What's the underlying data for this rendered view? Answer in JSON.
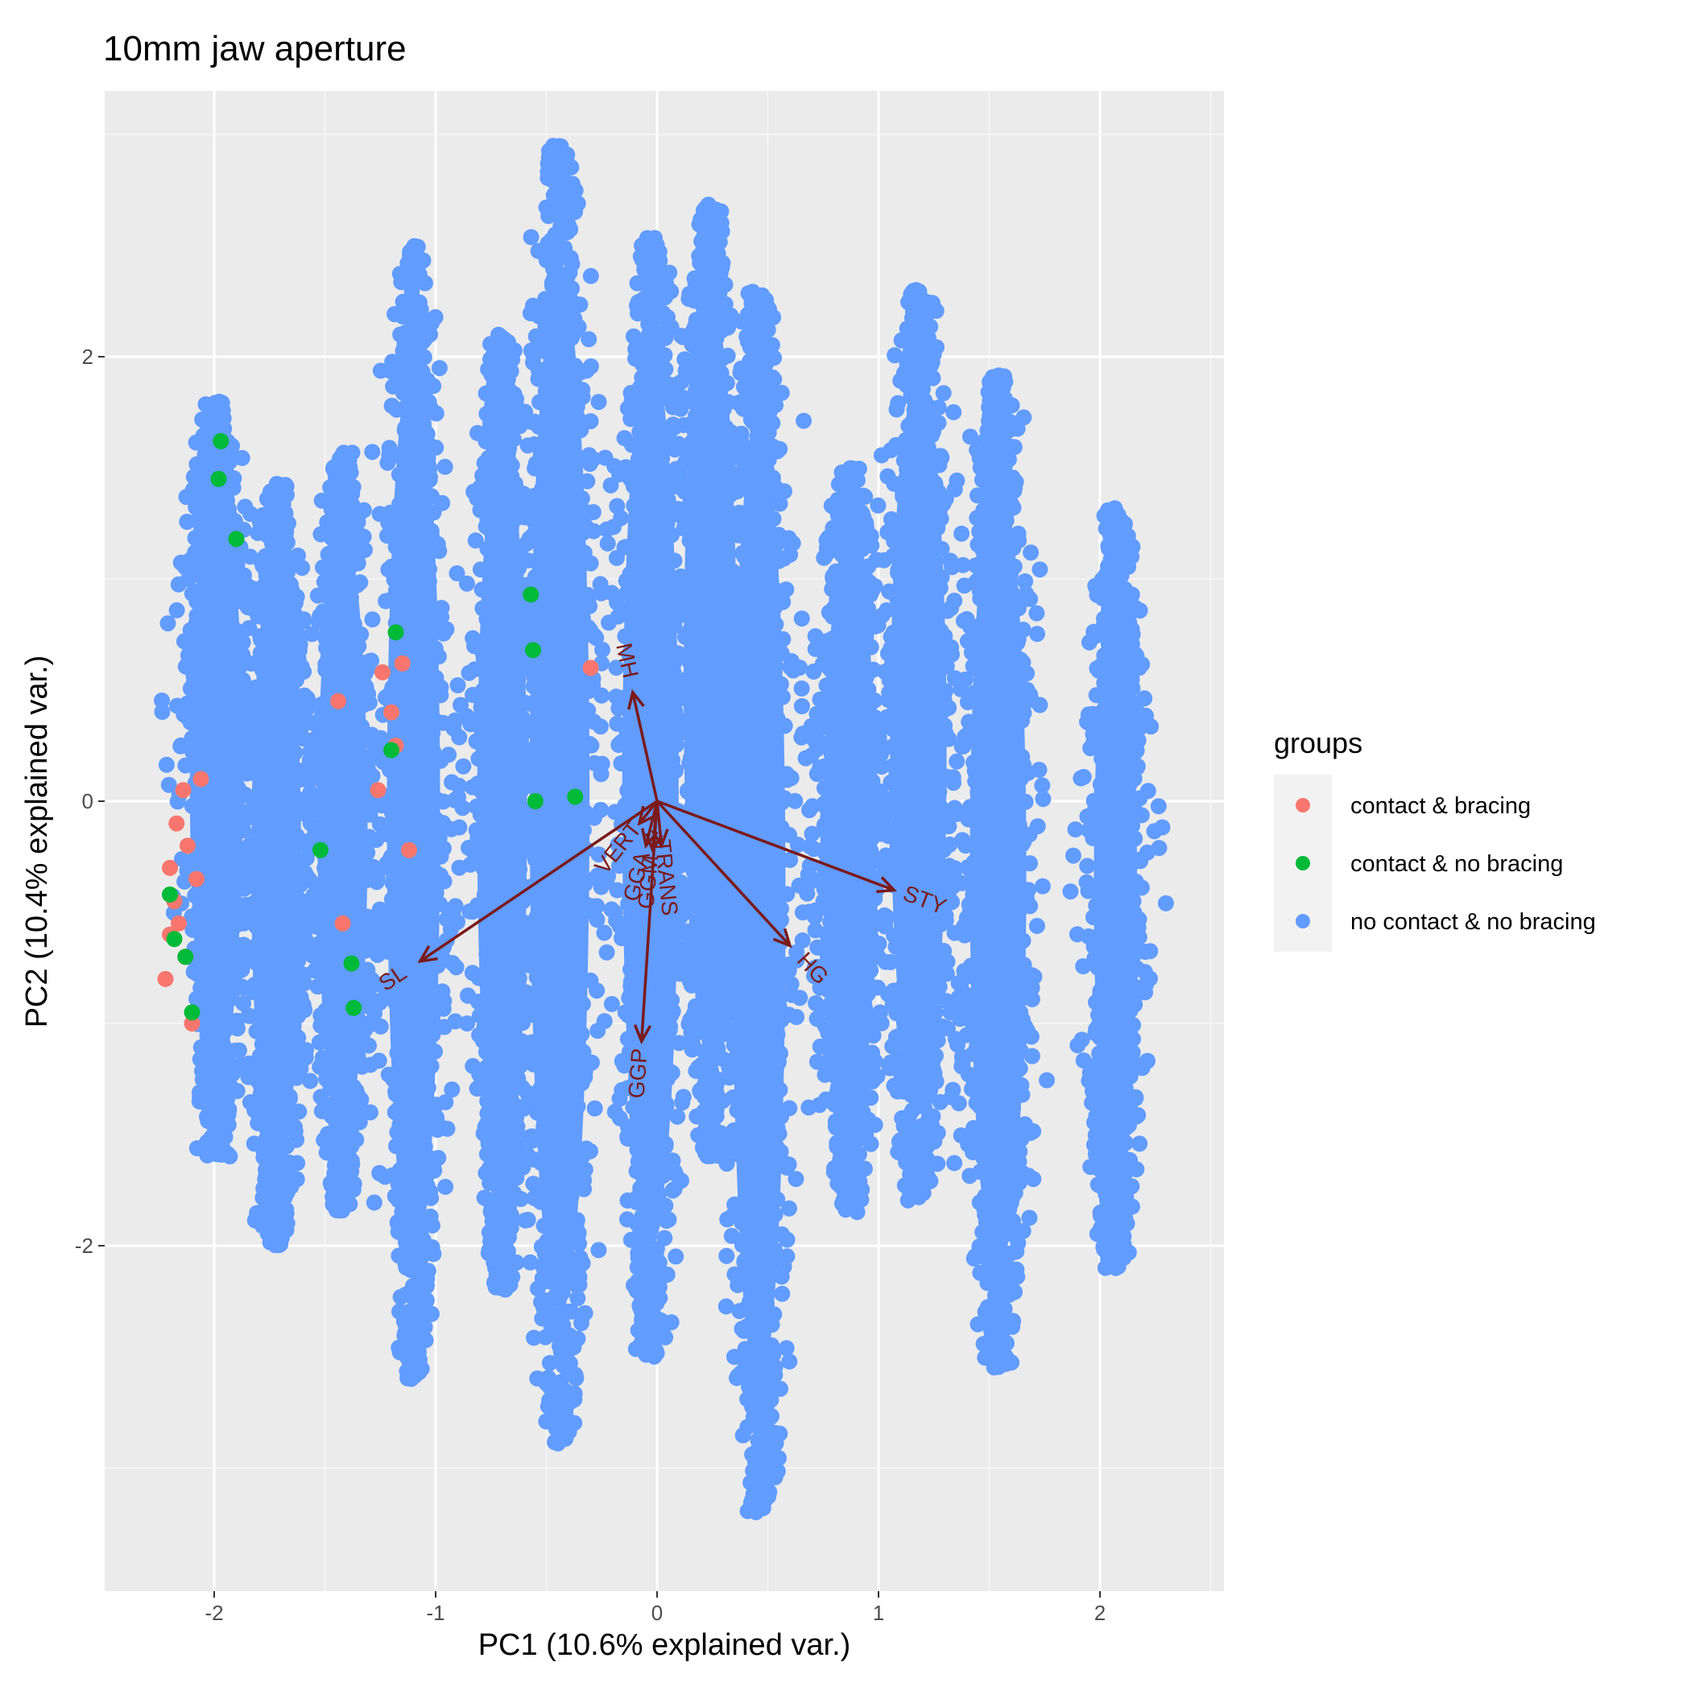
{
  "chart_data": {
    "type": "scatter",
    "title": "10mm jaw aperture",
    "xlabel": "PC1 (10.6% explained var.)",
    "ylabel": "PC2 (10.4% explained var.)",
    "xlim": [
      -2.5,
      2.5
    ],
    "ylim": [
      -3.5,
      3.2
    ],
    "x_ticks": [
      -2,
      -1,
      0,
      1,
      2
    ],
    "y_ticks": [
      -2,
      0,
      2
    ],
    "grid": true,
    "legend": {
      "title": "groups",
      "position": "right",
      "entries": [
        {
          "name": "contact & bracing",
          "color": "#F8766D"
        },
        {
          "name": "contact & no bracing",
          "color": "#00BA38"
        },
        {
          "name": "no contact & no bracing",
          "color": "#619CFF"
        }
      ]
    },
    "clusters_no_contact": [
      {
        "x_center": -1.99,
        "x_spread": 0.16,
        "y_min": -1.6,
        "y_max": 1.8
      },
      {
        "x_center": -1.72,
        "x_spread": 0.15,
        "y_min": -2.0,
        "y_max": 1.43
      },
      {
        "x_center": -1.42,
        "x_spread": 0.15,
        "y_min": -1.85,
        "y_max": 1.57
      },
      {
        "x_center": -1.1,
        "x_spread": 0.16,
        "y_min": -2.6,
        "y_max": 2.5
      },
      {
        "x_center": -0.7,
        "x_spread": 0.15,
        "y_min": -2.2,
        "y_max": 2.1
      },
      {
        "x_center": -0.44,
        "x_spread": 0.18,
        "y_min": -2.9,
        "y_max": 2.95
      },
      {
        "x_center": -0.03,
        "x_spread": 0.17,
        "y_min": -2.5,
        "y_max": 2.55
      },
      {
        "x_center": 0.24,
        "x_spread": 0.16,
        "y_min": -1.6,
        "y_max": 2.7
      },
      {
        "x_center": 0.46,
        "x_spread": 0.16,
        "y_min": -3.2,
        "y_max": 2.3
      },
      {
        "x_center": 0.87,
        "x_spread": 0.16,
        "y_min": -1.85,
        "y_max": 1.5
      },
      {
        "x_center": 1.18,
        "x_spread": 0.17,
        "y_min": -1.8,
        "y_max": 2.3
      },
      {
        "x_center": 1.54,
        "x_spread": 0.17,
        "y_min": -2.55,
        "y_max": 1.92
      },
      {
        "x_center": 2.07,
        "x_spread": 0.13,
        "y_min": -2.1,
        "y_max": 1.32
      }
    ],
    "points_contact_bracing": [
      [
        -2.22,
        -0.8
      ],
      [
        -2.2,
        -0.6
      ],
      [
        -2.18,
        -0.45
      ],
      [
        -2.2,
        -0.3
      ],
      [
        -2.17,
        -0.1
      ],
      [
        -2.14,
        0.05
      ],
      [
        -2.16,
        -0.55
      ],
      [
        -2.12,
        -0.2
      ],
      [
        -2.1,
        -1.0
      ],
      [
        -2.13,
        -0.7
      ],
      [
        -2.08,
        -0.35
      ],
      [
        -2.06,
        0.1
      ],
      [
        -1.44,
        0.45
      ],
      [
        -1.42,
        -0.55
      ],
      [
        -1.26,
        0.05
      ],
      [
        -1.24,
        0.58
      ],
      [
        -1.2,
        0.4
      ],
      [
        -1.18,
        0.25
      ],
      [
        -1.15,
        0.62
      ],
      [
        -1.12,
        -0.22
      ],
      [
        -0.3,
        0.6
      ]
    ],
    "points_contact_nobracing": [
      [
        -1.97,
        1.62
      ],
      [
        -1.98,
        1.45
      ],
      [
        -1.9,
        1.18
      ],
      [
        -2.2,
        -0.42
      ],
      [
        -2.18,
        -0.62
      ],
      [
        -2.13,
        -0.7
      ],
      [
        -2.1,
        -0.95
      ],
      [
        -1.52,
        -0.22
      ],
      [
        -1.38,
        -0.73
      ],
      [
        -1.37,
        -0.93
      ],
      [
        -1.2,
        0.23
      ],
      [
        -1.18,
        0.76
      ],
      [
        -0.57,
        0.93
      ],
      [
        -0.56,
        0.68
      ],
      [
        -0.55,
        0.0
      ],
      [
        -0.37,
        0.02
      ]
    ],
    "loadings": [
      {
        "name": "MH",
        "x": -0.11,
        "y": 0.49
      },
      {
        "name": "SL",
        "x": -1.07,
        "y": -0.72
      },
      {
        "name": "STY",
        "x": 1.07,
        "y": -0.4
      },
      {
        "name": "HG",
        "x": 0.6,
        "y": -0.65
      },
      {
        "name": "GGP",
        "x": -0.07,
        "y": -1.08
      },
      {
        "name": "VERT",
        "x": -0.08,
        "y": -0.1
      },
      {
        "name": "GGA",
        "x": -0.05,
        "y": -0.2
      },
      {
        "name": "GGM",
        "x": -0.02,
        "y": -0.22
      },
      {
        "name": "TRANS",
        "x": 0.02,
        "y": -0.2
      }
    ]
  }
}
